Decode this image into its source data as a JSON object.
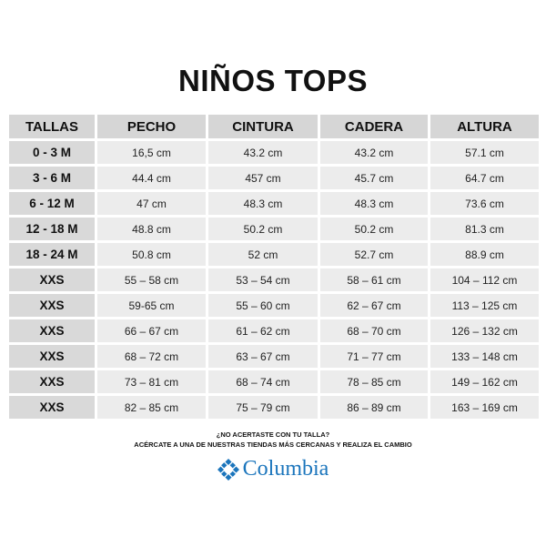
{
  "title": "NIÑOS TOPS",
  "table": {
    "headers": [
      "TALLAS",
      "PECHO",
      "CINTURA",
      "CADERA",
      "ALTURA"
    ],
    "rows": [
      [
        "0 - 3 M",
        "16,5 cm",
        "43.2 cm",
        "43.2 cm",
        "57.1 cm"
      ],
      [
        "3 - 6 M",
        "44.4 cm",
        "457 cm",
        "45.7 cm",
        "64.7 cm"
      ],
      [
        "6 - 12 M",
        "47 cm",
        "48.3 cm",
        "48.3 cm",
        "73.6 cm"
      ],
      [
        "12 - 18 M",
        "48.8 cm",
        "50.2 cm",
        "50.2 cm",
        "81.3 cm"
      ],
      [
        "18 - 24 M",
        "50.8 cm",
        "52 cm",
        "52.7 cm",
        "88.9 cm"
      ],
      [
        "XXS",
        "55 – 58 cm",
        "53 – 54 cm",
        "58 – 61 cm",
        "104 – 112 cm"
      ],
      [
        "XXS",
        "59-65 cm",
        "55 – 60 cm",
        "62 – 67 cm",
        "113 – 125 cm"
      ],
      [
        "XXS",
        "66 – 67 cm",
        "61 – 62 cm",
        "68 – 70 cm",
        "126 – 132 cm"
      ],
      [
        "XXS",
        "68 – 72 cm",
        "63 – 67 cm",
        "71 – 77 cm",
        "133 – 148 cm"
      ],
      [
        "XXS",
        "73 – 81 cm",
        "68 – 74 cm",
        "78 – 85 cm",
        "149 – 162 cm"
      ],
      [
        "XXS",
        "82 – 85 cm",
        "75 – 79 cm",
        "86 – 89 cm",
        "163 – 169 cm"
      ]
    ]
  },
  "footer": {
    "question": "¿NO ACERTASTE CON TU TALLA?",
    "note": "ACÉRCATE A UNA DE NUESTRAS TIENDAS MÁS CERCANAS Y REALIZA EL CAMBIO"
  },
  "logo": {
    "text": "Columbia",
    "icon": "columbia-diamond-icon",
    "color": "#1b75bc"
  },
  "colors": {
    "header_bg": "#d6d6d6",
    "size_bg": "#d9d9d9",
    "cell_bg": "#ececec"
  }
}
